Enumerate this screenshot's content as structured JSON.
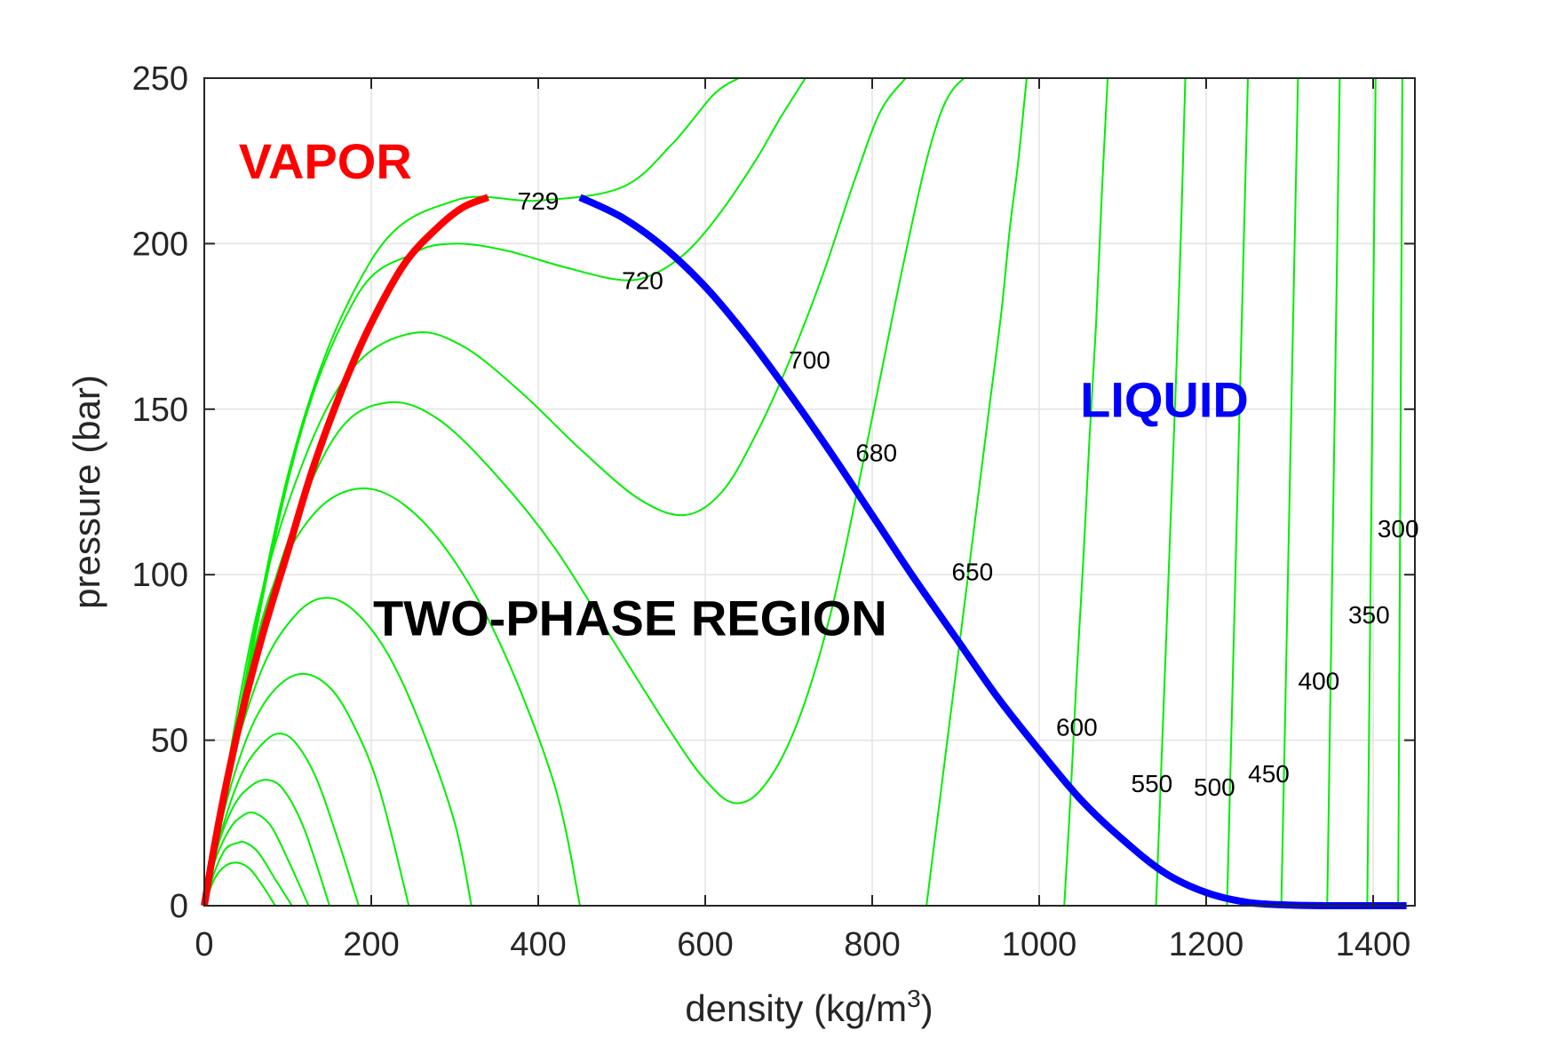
{
  "chart_data": {
    "type": "line",
    "xlabel": "density (kg/m",
    "xlabel_sup": "3",
    "xlabel_tail": ")",
    "ylabel": "pressure (bar)",
    "xlim": [
      0,
      1450
    ],
    "ylim": [
      0,
      250
    ],
    "xticks": [
      0,
      200,
      400,
      600,
      800,
      1000,
      1200,
      1400
    ],
    "yticks": [
      0,
      50,
      100,
      150,
      200,
      250
    ],
    "grid": true,
    "region_labels": [
      {
        "text": "VAPOR",
        "color": "#ff0000",
        "x": 145,
        "y": 225
      },
      {
        "text": "LIQUID",
        "color": "#0000ff",
        "x": 1150,
        "y": 153
      },
      {
        "text": "TWO-PHASE REGION",
        "color": "#000000",
        "x": 510,
        "y": 87
      }
    ],
    "saturation_vapor": {
      "color": "#ff0000",
      "x": [
        0,
        10,
        25,
        45,
        70,
        100,
        130,
        165,
        200,
        240,
        280,
        310,
        340
      ],
      "y": [
        0,
        15,
        35,
        58,
        82,
        107,
        132,
        156,
        176,
        194,
        205,
        211,
        214
      ]
    },
    "saturation_liquid": {
      "color": "#0000ff",
      "x": [
        450,
        500,
        550,
        600,
        650,
        700,
        750,
        800,
        850,
        900,
        950,
        1000,
        1050,
        1100,
        1150,
        1200,
        1250,
        1300,
        1350,
        1400,
        1440
      ],
      "y": [
        214,
        208,
        199,
        187,
        172,
        155,
        137,
        118,
        99,
        81,
        63,
        47,
        32,
        20,
        10,
        4,
        1,
        0.2,
        0,
        0,
        0
      ]
    },
    "isotherm_color": "#00ee00",
    "isotherm_labels": [
      {
        "text": "729",
        "x": 400,
        "y": 213
      },
      {
        "text": "720",
        "x": 525,
        "y": 189
      },
      {
        "text": "700",
        "x": 725,
        "y": 165
      },
      {
        "text": "680",
        "x": 805,
        "y": 137
      },
      {
        "text": "650",
        "x": 920,
        "y": 101
      },
      {
        "text": "600",
        "x": 1045,
        "y": 54
      },
      {
        "text": "550",
        "x": 1135,
        "y": 37
      },
      {
        "text": "500",
        "x": 1210,
        "y": 36
      },
      {
        "text": "450",
        "x": 1275,
        "y": 40
      },
      {
        "text": "400",
        "x": 1335,
        "y": 68
      },
      {
        "text": "350",
        "x": 1395,
        "y": 88
      },
      {
        "text": "300",
        "x": 1430,
        "y": 114
      }
    ],
    "isotherms": [
      {
        "x": [
          0,
          100,
          200,
          300,
          400,
          500,
          560,
          610,
          640
        ],
        "y": [
          0,
          130,
          195,
          213,
          213,
          217,
          230,
          245,
          250
        ]
      },
      {
        "x": [
          0,
          100,
          180,
          250,
          300,
          360,
          430,
          500,
          540,
          580,
          620,
          660,
          690,
          720
        ],
        "y": [
          0,
          128,
          183,
          197,
          200,
          198,
          193,
          189,
          191,
          198,
          210,
          225,
          238,
          250
        ]
      },
      {
        "x": [
          0,
          60,
          120,
          180,
          250,
          310,
          380,
          450,
          520,
          575,
          620,
          660,
          700,
          740,
          780,
          810,
          840
        ],
        "y": [
          0,
          85,
          135,
          163,
          173,
          169,
          155,
          138,
          123,
          118,
          125,
          142,
          164,
          190,
          220,
          240,
          250
        ]
      },
      {
        "x": [
          0,
          50,
          100,
          160,
          220,
          280,
          350,
          420,
          490,
          560,
          600,
          635,
          670,
          710,
          750,
          790,
          830,
          860,
          880,
          895,
          910
        ],
        "y": [
          0,
          65,
          110,
          143,
          152,
          147,
          130,
          108,
          80,
          52,
          38,
          31,
          36,
          55,
          88,
          135,
          185,
          220,
          238,
          246,
          250
        ]
      },
      {
        "x": [
          0,
          40,
          80,
          130,
          185,
          240,
          300,
          360,
          420,
          450
        ],
        "y": [
          0,
          55,
          95,
          118,
          126,
          121,
          104,
          76,
          36,
          0
        ]
      },
      {
        "x": [
          0,
          30,
          70,
          110,
          145,
          180,
          220,
          260,
          300,
          320
        ],
        "y": [
          0,
          40,
          72,
          88,
          93,
          89,
          76,
          54,
          25,
          0
        ]
      },
      {
        "x": [
          0,
          20,
          50,
          80,
          115,
          150,
          180,
          210,
          245
        ],
        "y": [
          0,
          25,
          50,
          64,
          70,
          66,
          54,
          35,
          0
        ]
      },
      {
        "x": [
          0,
          20,
          45,
          70,
          90,
          110,
          135,
          160,
          185
        ],
        "y": [
          0,
          22,
          40,
          49,
          52,
          49,
          38,
          20,
          0
        ]
      },
      {
        "x": [
          0,
          15,
          35,
          55,
          75,
          95,
          120,
          150
        ],
        "y": [
          0,
          17,
          30,
          36,
          38,
          35,
          23,
          0
        ]
      },
      {
        "x": [
          0,
          12,
          30,
          45,
          60,
          80,
          100,
          125
        ],
        "y": [
          0,
          13,
          23,
          27,
          28,
          24,
          14,
          0
        ]
      },
      {
        "x": [
          0,
          12,
          25,
          40,
          50,
          65,
          85,
          105
        ],
        "y": [
          0,
          10,
          17,
          19,
          19,
          16,
          8,
          0
        ]
      },
      {
        "x": [
          0,
          12,
          25,
          40,
          55,
          70,
          85
        ],
        "y": [
          0,
          8,
          12,
          13,
          11,
          6,
          0
        ]
      },
      {
        "x": [
          865,
          880,
          895,
          910,
          925,
          940,
          955,
          965,
          975,
          985
        ],
        "y": [
          0,
          30,
          60,
          90,
          120,
          150,
          180,
          205,
          225,
          250
        ]
      },
      {
        "x": [
          1030,
          1038,
          1045,
          1053,
          1060,
          1068,
          1075,
          1082
        ],
        "y": [
          0,
          35,
          70,
          105,
          140,
          175,
          215,
          250
        ]
      },
      {
        "x": [
          1140,
          1146,
          1152,
          1158,
          1164,
          1170,
          1175
        ],
        "y": [
          0,
          40,
          80,
          120,
          160,
          205,
          250
        ]
      },
      {
        "x": [
          1225,
          1230,
          1235,
          1240,
          1245,
          1250
        ],
        "y": [
          0,
          50,
          100,
          150,
          200,
          250
        ]
      },
      {
        "x": [
          1290,
          1294,
          1298,
          1302,
          1306,
          1310
        ],
        "y": [
          0,
          50,
          100,
          150,
          200,
          250
        ]
      },
      {
        "x": [
          1345,
          1348,
          1351,
          1354,
          1357,
          1360
        ],
        "y": [
          0,
          50,
          100,
          150,
          200,
          250
        ]
      },
      {
        "x": [
          1393,
          1395,
          1397,
          1399,
          1401,
          1403
        ],
        "y": [
          0,
          50,
          100,
          150,
          200,
          250
        ]
      },
      {
        "x": [
          1430,
          1431,
          1432,
          1433,
          1434,
          1435
        ],
        "y": [
          0,
          50,
          100,
          150,
          200,
          250
        ]
      }
    ]
  }
}
